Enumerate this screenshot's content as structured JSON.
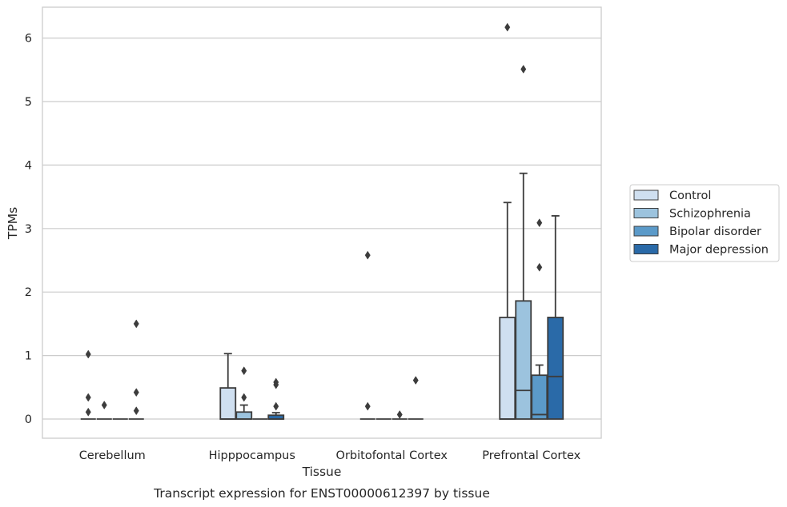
{
  "chart_data": {
    "type": "box",
    "title": "",
    "caption": "Transcript expression for ENST00000612397 by tissue",
    "xlabel": "Tissue",
    "ylabel": "TPMs",
    "ylim": [
      -0.3,
      6.5
    ],
    "yticks": [
      0,
      1,
      2,
      3,
      4,
      5,
      6
    ],
    "grid": "horizontal",
    "legend_position": "right",
    "categories": [
      "Cerebellum",
      "Hipppocampus",
      "Orbitofontal Cortex",
      "Prefrontal Cortex"
    ],
    "series": [
      {
        "name": "Control",
        "color": "#cfdff0",
        "boxes": [
          {
            "q1": 0,
            "median": 0,
            "q3": 0,
            "whisker_low": 0,
            "whisker_high": 0,
            "outliers": [
              1.02,
              0.34,
              0.11
            ]
          },
          {
            "q1": 0,
            "median": 0,
            "q3": 0.49,
            "whisker_low": 0,
            "whisker_high": 1.03,
            "outliers": []
          },
          {
            "q1": 0,
            "median": 0,
            "q3": 0,
            "whisker_low": 0,
            "whisker_high": 0,
            "outliers": [
              2.58,
              0.2
            ]
          },
          {
            "q1": 0,
            "median": 0,
            "q3": 1.6,
            "whisker_low": 0,
            "whisker_high": 3.41,
            "outliers": [
              6.17
            ]
          }
        ]
      },
      {
        "name": "Schizophrenia",
        "color": "#9cc3de",
        "boxes": [
          {
            "q1": 0,
            "median": 0,
            "q3": 0,
            "whisker_low": 0,
            "whisker_high": 0,
            "outliers": [
              0.22
            ]
          },
          {
            "q1": 0,
            "median": 0,
            "q3": 0.11,
            "whisker_low": 0,
            "whisker_high": 0.22,
            "outliers": [
              0.76,
              0.34
            ]
          },
          {
            "q1": 0,
            "median": 0,
            "q3": 0,
            "whisker_low": 0,
            "whisker_high": 0,
            "outliers": []
          },
          {
            "q1": 0,
            "median": 0.45,
            "q3": 1.86,
            "whisker_low": 0,
            "whisker_high": 3.87,
            "outliers": [
              5.51
            ]
          }
        ]
      },
      {
        "name": "Bipolar disorder",
        "color": "#5b9ac9",
        "boxes": [
          {
            "q1": 0,
            "median": 0,
            "q3": 0,
            "whisker_low": 0,
            "whisker_high": 0,
            "outliers": []
          },
          {
            "q1": 0,
            "median": 0,
            "q3": 0,
            "whisker_low": 0,
            "whisker_high": 0,
            "outliers": []
          },
          {
            "q1": 0,
            "median": 0,
            "q3": 0,
            "whisker_low": 0,
            "whisker_high": 0,
            "outliers": [
              0.07
            ]
          },
          {
            "q1": 0,
            "median": 0.07,
            "q3": 0.69,
            "whisker_low": 0,
            "whisker_high": 0.85,
            "outliers": [
              3.09,
              2.39
            ]
          }
        ]
      },
      {
        "name": "Major depression",
        "color": "#2a6aa8",
        "boxes": [
          {
            "q1": 0,
            "median": 0,
            "q3": 0,
            "whisker_low": 0,
            "whisker_high": 0,
            "outliers": [
              1.5,
              0.42,
              0.13
            ]
          },
          {
            "q1": 0,
            "median": 0,
            "q3": 0.06,
            "whisker_low": 0,
            "whisker_high": 0.1,
            "outliers": [
              0.58,
              0.54,
              0.2
            ]
          },
          {
            "q1": 0,
            "median": 0,
            "q3": 0,
            "whisker_low": 0,
            "whisker_high": 0,
            "outliers": [
              0.61
            ]
          },
          {
            "q1": 0,
            "median": 0.67,
            "q3": 1.6,
            "whisker_low": 0,
            "whisker_high": 3.2,
            "outliers": []
          }
        ]
      }
    ]
  }
}
